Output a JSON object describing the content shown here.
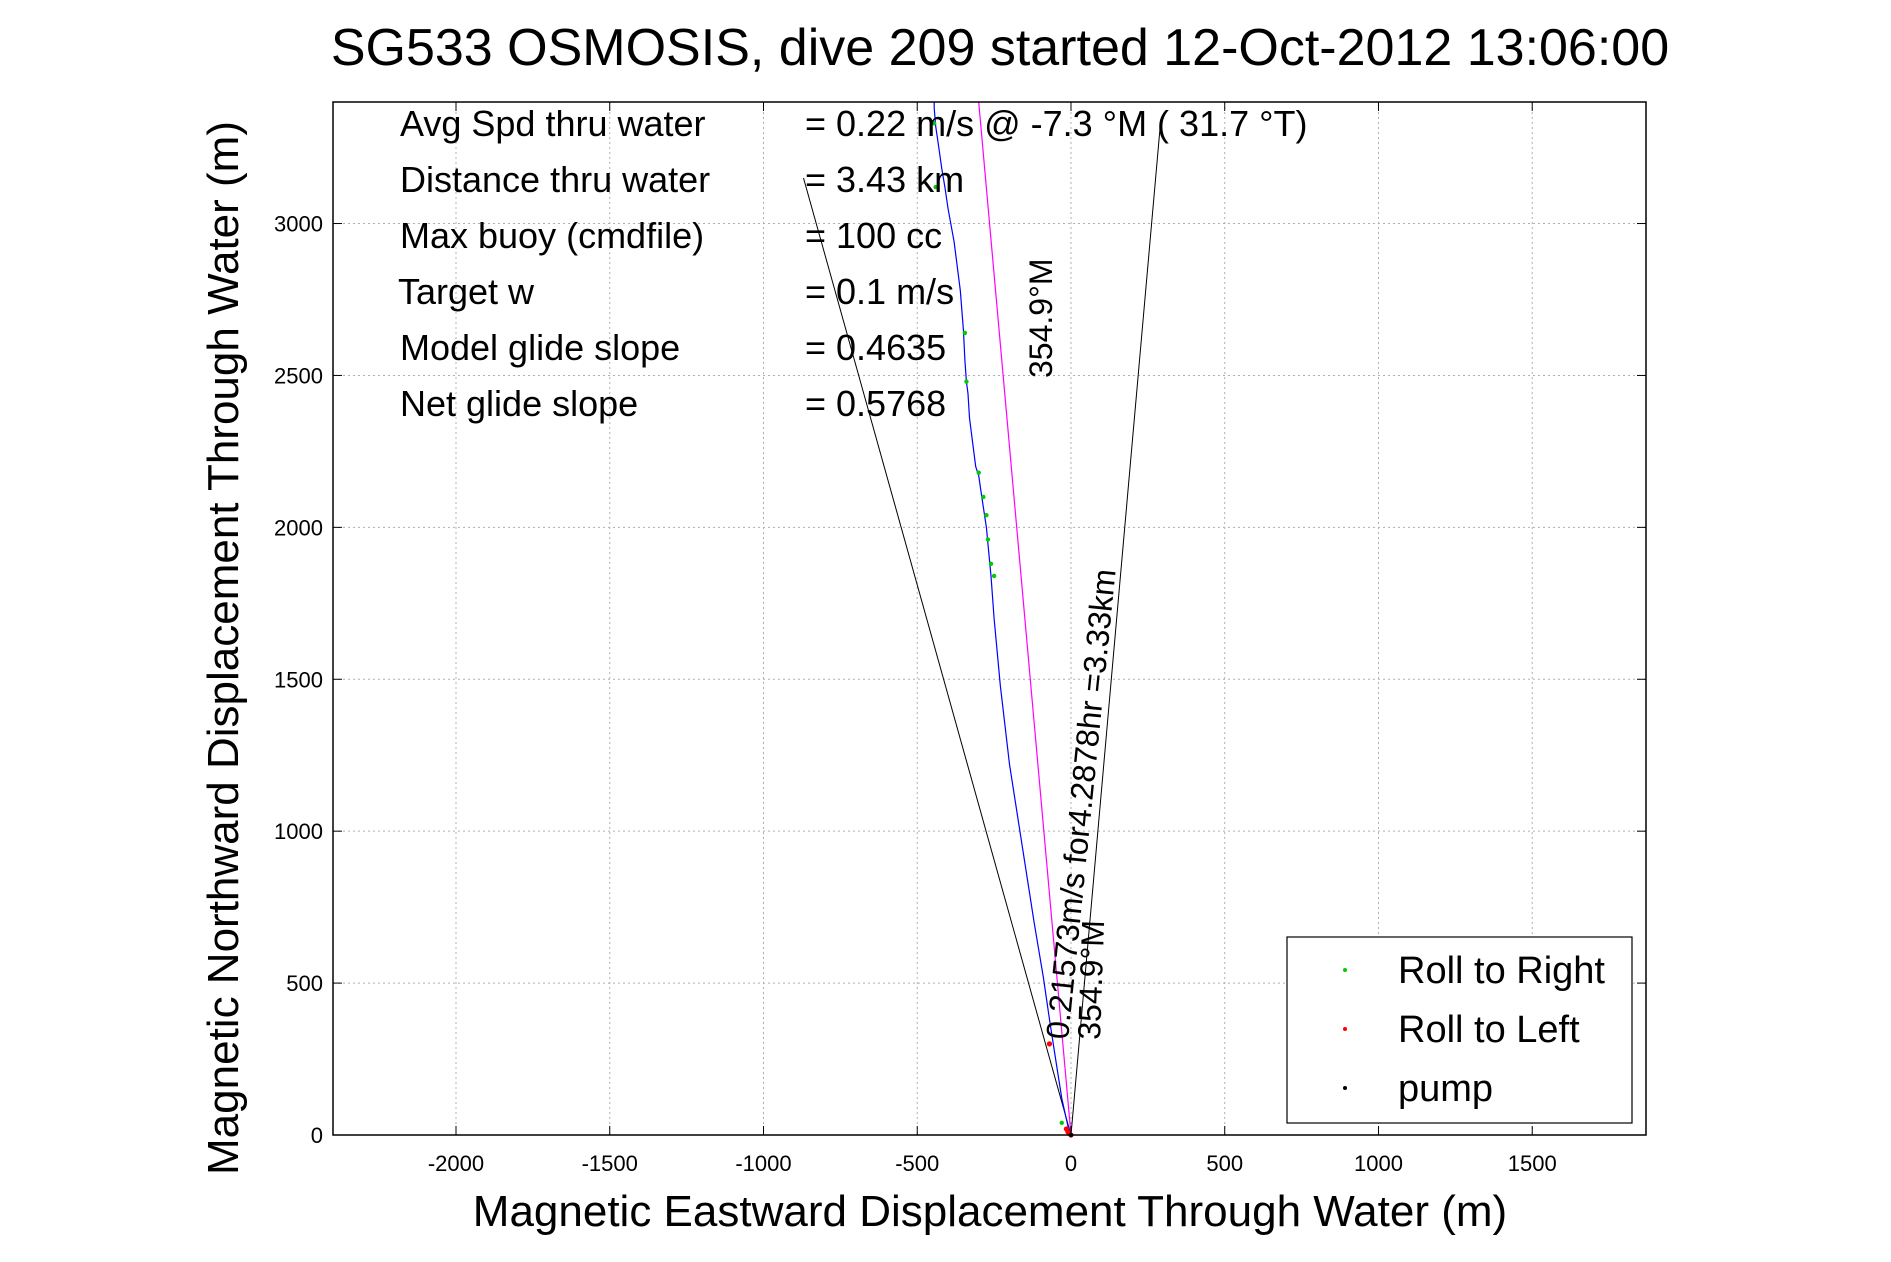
{
  "chart_data": {
    "type": "line",
    "title": "SG533 OSMOSIS, dive 209 started 12-Oct-2012 13:06:00",
    "xlabel": "Magnetic Eastward Displacement Through Water (m)",
    "ylabel": "Magnetic Northward Displacement Through Water (m)",
    "xlim": [
      -2400,
      1870
    ],
    "ylim": [
      0,
      3400
    ],
    "xticks": [
      -2000,
      -1500,
      -1000,
      -500,
      0,
      500,
      1000,
      1500
    ],
    "xtick_labels": [
      "-2000",
      "-1500",
      "-1000",
      "-500",
      "0",
      "500",
      "1000",
      "1500"
    ],
    "yticks": [
      0,
      500,
      1000,
      1500,
      2000,
      2500,
      3000
    ],
    "ytick_labels": [
      "0",
      "500",
      "1000",
      "1500",
      "2000",
      "2500",
      "3000"
    ],
    "grid": true,
    "legend_position": "bottom-right",
    "stats": [
      {
        "label": "Avg Spd thru water",
        "value": "=  0.22 m/s @  -7.3 °M ( 31.7 °T)"
      },
      {
        "label": "Distance thru water",
        "value": "=  3.43 km"
      },
      {
        "label": "Max buoy (cmdfile)",
        "value": "= 100 cc"
      },
      {
        "label": "Target w",
        "value": "= 0.1 m/s"
      },
      {
        "label": "Model glide slope",
        "value": "= 0.4635"
      },
      {
        "label": "Net glide slope",
        "value": "= 0.5768"
      }
    ],
    "annotations": {
      "heading_top": "354.9°M",
      "speed_label": "0.21573m/s for4.2878hr =3.33km",
      "heading_bottom": "354.9°M"
    },
    "track": {
      "x": [
        0,
        -10,
        -30,
        -50,
        -70,
        -90,
        -120,
        -160,
        -200,
        -230,
        -250,
        -260,
        -275,
        -290,
        -300,
        -310,
        -320,
        -330,
        -335,
        -340,
        -345,
        -350,
        -360,
        -380,
        -400,
        -410,
        -420,
        -430,
        -440,
        -445,
        -445
      ],
      "y": [
        0,
        30,
        120,
        250,
        380,
        520,
        700,
        960,
        1220,
        1480,
        1700,
        1840,
        2000,
        2100,
        2170,
        2200,
        2280,
        2360,
        2440,
        2480,
        2550,
        2650,
        2780,
        2940,
        3050,
        3120,
        3180,
        3250,
        3320,
        3380,
        3400
      ]
    },
    "heading_line": {
      "x": [
        0,
        -300
      ],
      "y": [
        0,
        3400
      ]
    },
    "cone_lines": [
      {
        "x": [
          0,
          -870
        ],
        "y": [
          0,
          3150
        ]
      },
      {
        "x": [
          0,
          290
        ],
        "y": [
          0,
          3320
        ]
      }
    ],
    "roll_right_points": {
      "x": [
        -30,
        -250,
        -260,
        -270,
        -275,
        -285,
        -300,
        -340,
        -345,
        -440,
        -445
      ],
      "y": [
        40,
        1840,
        1880,
        1960,
        2040,
        2100,
        2180,
        2480,
        2640,
        3120,
        3330
      ]
    },
    "roll_left_points": {
      "x": [
        -70,
        -15,
        -10,
        -5,
        0
      ],
      "y": [
        300,
        20,
        10,
        5,
        0
      ]
    },
    "pump_points": {
      "x": [
        0
      ],
      "y": [
        0
      ]
    },
    "series": [
      {
        "name": "Roll to Right",
        "color": "#00cc00"
      },
      {
        "name": "Roll to Left",
        "color": "#ff0000"
      },
      {
        "name": "pump",
        "color": "#000000"
      }
    ],
    "colors": {
      "track": "#0000ff",
      "heading_line": "#ff00ff",
      "cone": "#000000"
    }
  }
}
